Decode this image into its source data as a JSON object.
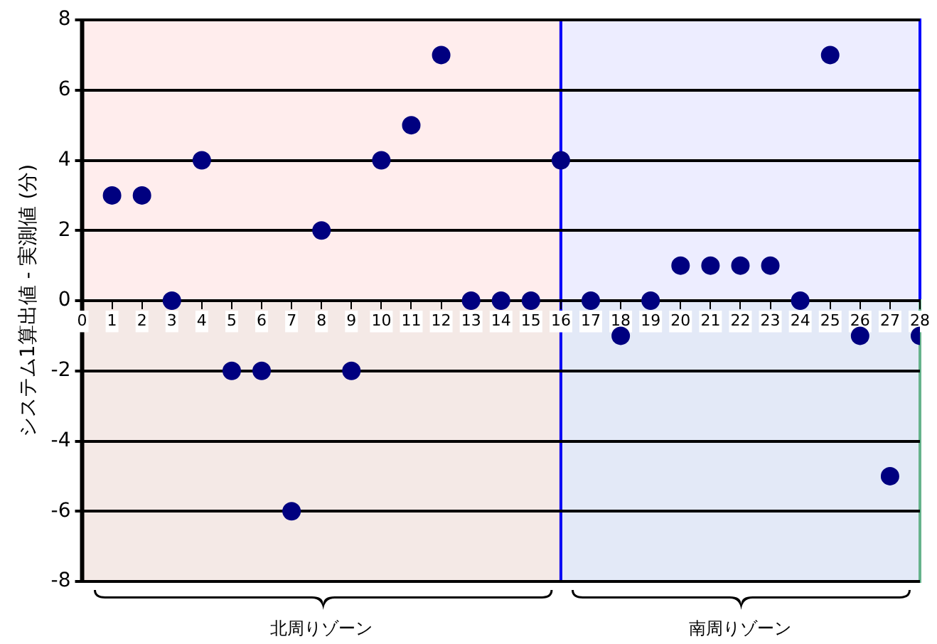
{
  "chart_data": {
    "type": "scatter",
    "ylabel": "システム1算出値 - 実測値 (分)",
    "x": [
      1,
      2,
      3,
      4,
      5,
      6,
      7,
      8,
      9,
      10,
      11,
      12,
      13,
      14,
      15,
      16,
      17,
      18,
      19,
      20,
      21,
      22,
      23,
      24,
      25,
      26,
      27,
      28
    ],
    "series": [
      {
        "color": "#000080",
        "values": [
          3,
          3,
          0,
          4,
          -2,
          -2,
          -6,
          2,
          -2,
          4,
          5,
          7,
          0,
          0,
          0,
          4,
          0,
          -1,
          0,
          1,
          1,
          1,
          1,
          0,
          7,
          -1,
          -5,
          -1
        ]
      }
    ],
    "xlim": [
      0,
      28
    ],
    "xticks": [
      0,
      1,
      2,
      3,
      4,
      5,
      6,
      7,
      8,
      9,
      10,
      11,
      12,
      13,
      14,
      15,
      16,
      17,
      18,
      19,
      20,
      21,
      22,
      23,
      24,
      25,
      26,
      27,
      28
    ],
    "ylim": [
      -8,
      8
    ],
    "yticks": [
      -8,
      -6,
      -4,
      -2,
      0,
      2,
      4,
      6,
      8
    ],
    "bands": [
      {
        "axis": "x",
        "from": 0,
        "to": 16,
        "label": "北周りゾーン",
        "color": "#ff0000"
      },
      {
        "axis": "x",
        "from": 16,
        "to": 28,
        "label": "南周りゾーン",
        "color": "#0000ff"
      },
      {
        "axis": "y",
        "from": -8,
        "to": 0,
        "color": "#66b38c"
      }
    ],
    "grid": "y",
    "legend": false,
    "marker": "circle"
  }
}
